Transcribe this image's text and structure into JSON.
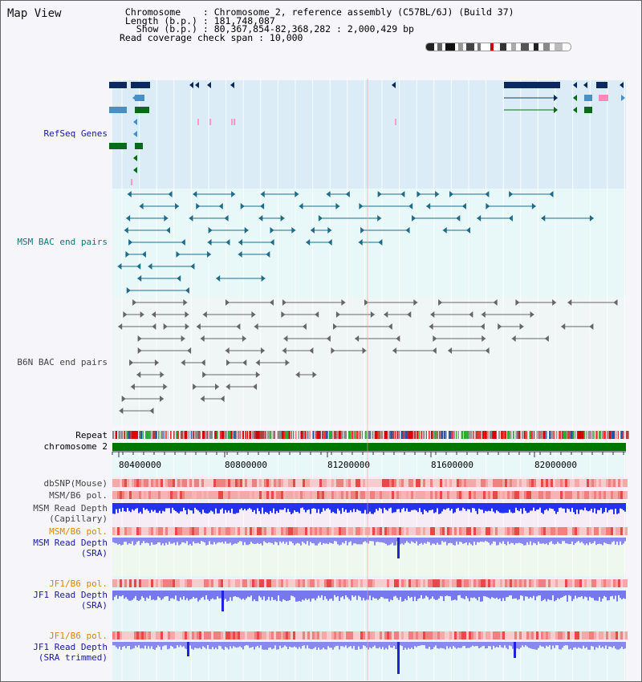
{
  "title": "Map View",
  "info": {
    "line1": " Chromosome    : Chromosome 2, reference assembly (C57BL/6J) (Build 37)",
    "line2": " Length (b.p.) : 181,748,087",
    "line3": "   Show (b.p.) : 80,367,854-82,368,282 : 2,000,429 bp",
    "line4": "Read coverage check span : 10,000"
  },
  "tracks": {
    "refseq": "RefSeq Genes",
    "msm_bac": "MSM BAC end pairs",
    "b6n_bac": "B6N BAC end pairs",
    "repeat": "Repeat",
    "chromosome": "chromosome 2",
    "dbsnp": "dbSNP(Mouse)",
    "msm_b6_pol": "MSM/B6 pol.",
    "msm_depth_cap": "MSM Read Depth\n(Capillary)",
    "msm_b6_pol2": "MSM/B6 pol.",
    "msm_depth_sra": "MSM Read Depth\n(SRA)",
    "jf1_b6_pol": "JF1/B6 pol.",
    "jf1_depth_sra": "JF1 Read Depth\n(SRA)",
    "jf1_b6_pol2": "JF1/B6 pol.",
    "jf1_depth_trim": "JF1 Read Depth\n(SRA trimmed)"
  },
  "axis": {
    "ticks": [
      "80400000",
      "80800000",
      "81200000",
      "81600000",
      "82000000"
    ]
  },
  "colors": {
    "refseq_bg": "#dcecf7",
    "bac_bg": "#e8f8f8",
    "label_blue": "#1a1a99",
    "label_teal": "#117777",
    "label_orange": "#dd8800",
    "label_gray": "#444444",
    "chrom_green": "#007700"
  }
}
